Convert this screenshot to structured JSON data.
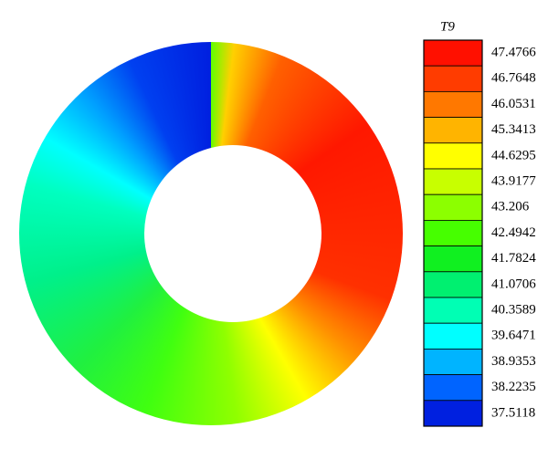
{
  "chart_data": {
    "type": "contour",
    "legend_title": "T9",
    "levels": [
      47.4766,
      46.7648,
      46.0531,
      45.3413,
      44.6295,
      43.9177,
      43.206,
      42.4942,
      41.7824,
      41.0706,
      40.3589,
      39.6471,
      38.9353,
      38.2235,
      37.5118
    ],
    "colors": [
      "#ff1000",
      "#ff3c00",
      "#ff7800",
      "#ffb400",
      "#ffff00",
      "#c8ff00",
      "#8cff00",
      "#46ff00",
      "#10f020",
      "#00f070",
      "#00ffb4",
      "#00ffff",
      "#00b4ff",
      "#0064ff",
      "#0020e0"
    ]
  }
}
